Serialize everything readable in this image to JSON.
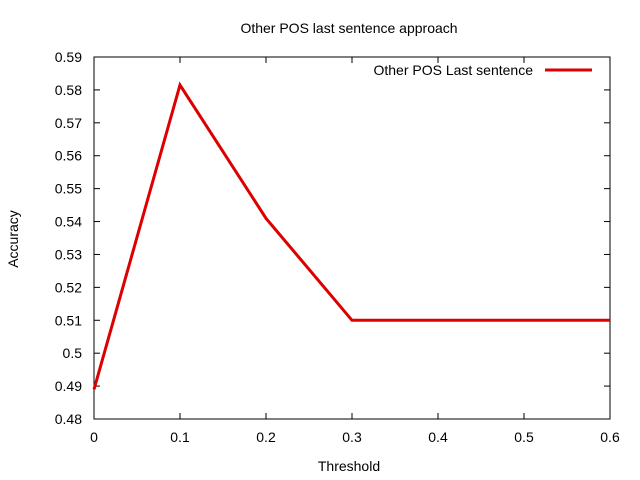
{
  "chart_data": {
    "type": "line",
    "title": "Other POS last sentence approach",
    "xlabel": "Threshold",
    "ylabel": "Accuracy",
    "xlim": [
      0,
      0.6
    ],
    "ylim": [
      0.48,
      0.59
    ],
    "xticks": [
      0,
      0.1,
      0.2,
      0.3,
      0.4,
      0.5,
      0.6
    ],
    "yticks": [
      0.48,
      0.49,
      0.5,
      0.51,
      0.52,
      0.53,
      0.54,
      0.55,
      0.56,
      0.57,
      0.58,
      0.59
    ],
    "xtick_labels": [
      "0",
      "0.1",
      "0.2",
      "0.3",
      "0.4",
      "0.5",
      "0.6"
    ],
    "ytick_labels": [
      "0.48",
      "0.49",
      "0.5",
      "0.51",
      "0.52",
      "0.53",
      "0.54",
      "0.55",
      "0.56",
      "0.57",
      "0.58",
      "0.59"
    ],
    "grid": false,
    "legend_position": "top-right",
    "series": [
      {
        "name": "Other POS Last sentence",
        "color": "#dd0000",
        "x": [
          0,
          0.1,
          0.2,
          0.3,
          0.4,
          0.5,
          0.6
        ],
        "y": [
          0.489,
          0.5815,
          0.541,
          0.51,
          0.51,
          0.51,
          0.51
        ]
      }
    ]
  }
}
